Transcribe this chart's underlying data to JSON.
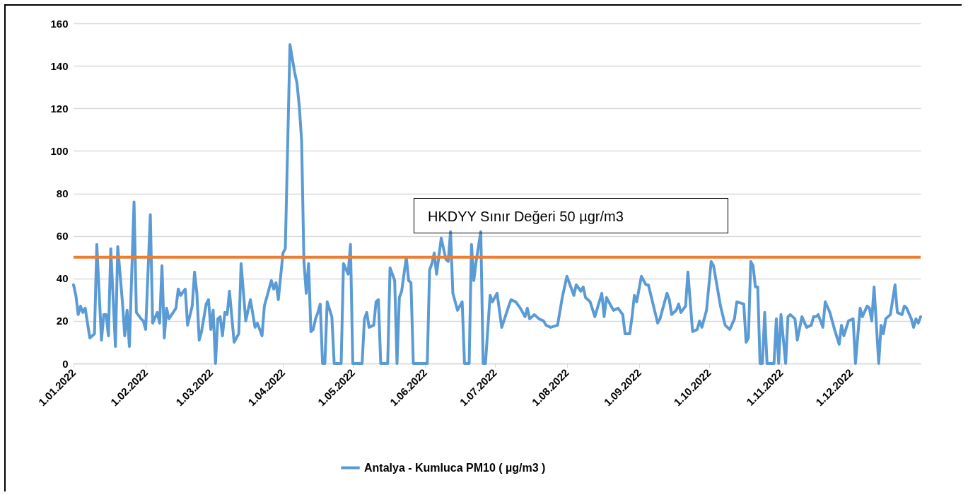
{
  "chart_data": {
    "type": "line",
    "x": [
      "2022-01-01",
      "2022-01-02",
      "2022-01-03",
      "2022-01-04",
      "2022-01-05",
      "2022-01-06",
      "2022-01-08",
      "2022-01-10",
      "2022-01-11",
      "2022-01-13",
      "2022-01-14",
      "2022-01-15",
      "2022-01-16",
      "2022-01-17",
      "2022-01-19",
      "2022-01-20",
      "2022-01-22",
      "2022-01-23",
      "2022-01-24",
      "2022-01-25",
      "2022-01-27",
      "2022-01-28",
      "2022-01-30",
      "2022-01-31",
      "2022-02-01",
      "2022-02-03",
      "2022-02-04",
      "2022-02-06",
      "2022-02-07",
      "2022-02-08",
      "2022-02-09",
      "2022-02-10",
      "2022-02-11",
      "2022-02-14",
      "2022-02-15",
      "2022-02-16",
      "2022-02-18",
      "2022-02-19",
      "2022-02-21",
      "2022-02-22",
      "2022-02-23",
      "2022-02-24",
      "2022-02-25",
      "2022-02-27",
      "2022-02-28",
      "2022-03-01",
      "2022-03-02",
      "2022-03-03",
      "2022-03-04",
      "2022-03-05",
      "2022-03-06",
      "2022-03-07",
      "2022-03-08",
      "2022-03-09",
      "2022-03-11",
      "2022-03-13",
      "2022-03-14",
      "2022-03-16",
      "2022-03-18",
      "2022-03-20",
      "2022-03-21",
      "2022-03-23",
      "2022-03-24",
      "2022-03-25",
      "2022-03-27",
      "2022-03-28",
      "2022-03-29",
      "2022-03-30",
      "2022-04-01",
      "2022-04-02",
      "2022-04-04",
      "2022-04-06",
      "2022-04-07",
      "2022-04-08",
      "2022-04-09",
      "2022-04-10",
      "2022-04-11",
      "2022-04-12",
      "2022-04-13",
      "2022-04-14",
      "2022-04-15",
      "2022-04-16",
      "2022-04-17",
      "2022-04-18",
      "2022-04-19",
      "2022-04-20",
      "2022-04-22",
      "2022-04-23",
      "2022-04-26",
      "2022-04-27",
      "2022-04-29",
      "2022-04-30",
      "2022-05-01",
      "2022-05-05",
      "2022-05-06",
      "2022-05-07",
      "2022-05-08",
      "2022-05-10",
      "2022-05-11",
      "2022-05-12",
      "2022-05-13",
      "2022-05-16",
      "2022-05-17",
      "2022-05-19",
      "2022-05-20",
      "2022-05-21",
      "2022-05-22",
      "2022-05-24",
      "2022-05-25",
      "2022-05-26",
      "2022-05-27",
      "2022-06-02",
      "2022-06-03",
      "2022-06-04",
      "2022-06-05",
      "2022-06-06",
      "2022-06-08",
      "2022-06-10",
      "2022-06-11",
      "2022-06-12",
      "2022-06-13",
      "2022-06-15",
      "2022-06-17",
      "2022-06-18",
      "2022-06-20",
      "2022-06-21",
      "2022-06-22",
      "2022-06-23",
      "2022-06-25",
      "2022-06-26",
      "2022-06-27",
      "2022-06-29",
      "2022-06-30",
      "2022-07-02",
      "2022-07-04",
      "2022-07-07",
      "2022-07-08",
      "2022-07-10",
      "2022-07-12",
      "2022-07-14",
      "2022-07-15",
      "2022-07-16",
      "2022-07-18",
      "2022-07-20",
      "2022-07-22",
      "2022-07-23",
      "2022-07-25",
      "2022-07-28",
      "2022-07-30",
      "2022-08-01",
      "2022-08-04",
      "2022-08-05",
      "2022-08-07",
      "2022-08-08",
      "2022-08-09",
      "2022-08-11",
      "2022-08-13",
      "2022-08-16",
      "2022-08-17",
      "2022-08-18",
      "2022-08-21",
      "2022-08-23",
      "2022-08-25",
      "2022-08-26",
      "2022-08-28",
      "2022-08-29",
      "2022-08-30",
      "2022-08-31",
      "2022-09-02",
      "2022-09-04",
      "2022-09-05",
      "2022-09-07",
      "2022-09-09",
      "2022-09-10",
      "2022-09-13",
      "2022-09-14",
      "2022-09-15",
      "2022-09-17",
      "2022-09-18",
      "2022-09-19",
      "2022-09-21",
      "2022-09-22",
      "2022-09-24",
      "2022-09-26",
      "2022-09-27",
      "2022-09-28",
      "2022-09-30",
      "2022-10-02",
      "2022-10-03",
      "2022-10-06",
      "2022-10-08",
      "2022-10-10",
      "2022-10-12",
      "2022-10-13",
      "2022-10-16",
      "2022-10-17",
      "2022-10-18",
      "2022-10-19",
      "2022-10-20",
      "2022-10-21",
      "2022-10-22",
      "2022-10-23",
      "2022-10-24",
      "2022-10-25",
      "2022-10-26",
      "2022-10-29",
      "2022-10-30",
      "2022-10-31",
      "2022-11-01",
      "2022-11-03",
      "2022-11-04",
      "2022-11-05",
      "2022-11-07",
      "2022-11-08",
      "2022-11-10",
      "2022-11-12",
      "2022-11-14",
      "2022-11-15",
      "2022-11-16",
      "2022-11-17",
      "2022-11-19",
      "2022-11-20",
      "2022-11-22",
      "2022-11-24",
      "2022-11-26",
      "2022-11-27",
      "2022-11-28",
      "2022-11-30",
      "2022-12-02",
      "2022-12-03",
      "2022-12-05",
      "2022-12-06",
      "2022-12-08",
      "2022-12-09",
      "2022-12-10",
      "2022-12-11",
      "2022-12-13",
      "2022-12-14",
      "2022-12-15",
      "2022-12-16",
      "2022-12-18",
      "2022-12-20",
      "2022-12-21",
      "2022-12-23",
      "2022-12-24",
      "2022-12-25",
      "2022-12-27",
      "2022-12-28",
      "2022-12-29",
      "2022-12-30",
      "2022-12-31"
    ],
    "series": [
      {
        "name": "Antalya - Kumluca PM10 ( µg/m3 )",
        "color": "#5b9bd5",
        "values": [
          37,
          32,
          23,
          27,
          24,
          26,
          12,
          14,
          56,
          11,
          23,
          23,
          13,
          54,
          8,
          55,
          29,
          13,
          25,
          8,
          76,
          24,
          21,
          20,
          16,
          70,
          19,
          24,
          19,
          46,
          12,
          26,
          21,
          26,
          35,
          32,
          35,
          18,
          27,
          43,
          33,
          11,
          15,
          28,
          30,
          16,
          25,
          0,
          21,
          22,
          13,
          24,
          23,
          34,
          10,
          14,
          47,
          20,
          30,
          17,
          19,
          13,
          27,
          31,
          39,
          35,
          38,
          30,
          52,
          54,
          150,
          137,
          132,
          121,
          105,
          48,
          33,
          47,
          15,
          16,
          21,
          24,
          28,
          0,
          0,
          29,
          22,
          0,
          0,
          47,
          42,
          56,
          0,
          0,
          21,
          24,
          17,
          18,
          29,
          30,
          0,
          0,
          45,
          39,
          0,
          31,
          34,
          50,
          39,
          38,
          0,
          0,
          44,
          47,
          52,
          42,
          59,
          49,
          48,
          62,
          33,
          25,
          29,
          0,
          0,
          56,
          39,
          48,
          62,
          0,
          0,
          32,
          29,
          33,
          17,
          27,
          30,
          29,
          26,
          22,
          26,
          21,
          23,
          21,
          20,
          18,
          17,
          18,
          31,
          41,
          32,
          37,
          34,
          36,
          31,
          29,
          22,
          33,
          22,
          31,
          25,
          26,
          23,
          14,
          14,
          22,
          32,
          29,
          41,
          37,
          37,
          28,
          19,
          21,
          33,
          30,
          23,
          25,
          28,
          24,
          27,
          43,
          15,
          16,
          20,
          17,
          25,
          48,
          46,
          27,
          18,
          16,
          21,
          29,
          28,
          10,
          12,
          48,
          46,
          36,
          36,
          0,
          0,
          24,
          0,
          0,
          21,
          0,
          23,
          0,
          22,
          23,
          21,
          11,
          22,
          17,
          18,
          22,
          22,
          23,
          17,
          29,
          24,
          16,
          9,
          18,
          13,
          20,
          21,
          0,
          26,
          22,
          27,
          26,
          20,
          36,
          0,
          18,
          14,
          21,
          23,
          37,
          24,
          23,
          27,
          26,
          21,
          17,
          21,
          19,
          22
        ]
      }
    ],
    "xlim": [
      "2022-01-01",
      "2022-12-31"
    ],
    "xticks": [
      {
        "value": "2022-01-01",
        "label": "1.01.2022"
      },
      {
        "value": "2022-02-01",
        "label": "1.02.2022"
      },
      {
        "value": "2022-03-01",
        "label": "1.03.2022"
      },
      {
        "value": "2022-04-01",
        "label": "1.04.2022"
      },
      {
        "value": "2022-05-01",
        "label": "1.05.2022"
      },
      {
        "value": "2022-06-01",
        "label": "1.06.2022"
      },
      {
        "value": "2022-07-01",
        "label": "1.07.2022"
      },
      {
        "value": "2022-08-01",
        "label": "1.08.2022"
      },
      {
        "value": "2022-09-01",
        "label": "1.09.2022"
      },
      {
        "value": "2022-10-01",
        "label": "1.10.2022"
      },
      {
        "value": "2022-11-01",
        "label": "1.11.2022"
      },
      {
        "value": "2022-12-01",
        "label": "1.12.2022"
      }
    ],
    "ylim": [
      0,
      160
    ],
    "yticks": [
      0,
      20,
      40,
      60,
      80,
      100,
      120,
      140,
      160
    ],
    "ref_lines": [
      {
        "axis": "y",
        "value": 50,
        "label": "HKDYY Sınır Değeri 50 µgr/m3",
        "color": "#ed7d31"
      }
    ],
    "grid": "y",
    "legend": "bottom"
  }
}
